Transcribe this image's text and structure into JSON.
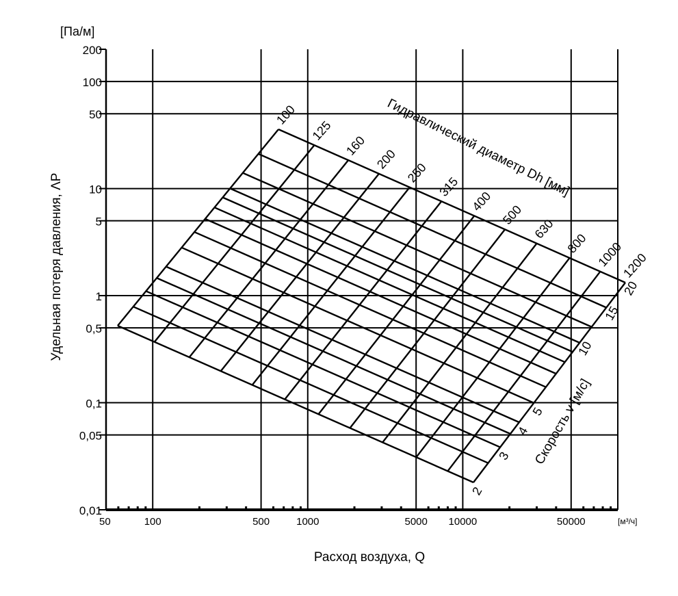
{
  "chart_data": {
    "type": "nomogram",
    "y_unit": "[Па/м]",
    "ylabel": "Удельная потеря давления, ΛP",
    "yscale": "log",
    "ylim": [
      0.01,
      200
    ],
    "yticks": [
      200,
      100,
      50,
      10,
      5,
      1,
      0.5,
      0.1,
      0.05,
      0.01
    ],
    "ytick_labels": [
      "200",
      "100",
      "50",
      "10",
      "5",
      "1",
      "0,5",
      "0,1",
      "0,05",
      "0,01"
    ],
    "xlabel": "Расход воздуха, Q",
    "x_unit": "[м³/ч]",
    "xscale": "log",
    "xlim": [
      50,
      100000
    ],
    "xticks": [
      50,
      100,
      500,
      1000,
      5000,
      10000,
      50000
    ],
    "xtick_labels": [
      "50",
      "100",
      "500",
      "1000",
      "5000",
      "10000",
      "50000"
    ],
    "grid": true,
    "diameter_title": "Гидравлический диаметр Dh [мм]",
    "diameters_mm": [
      100,
      125,
      160,
      200,
      250,
      315,
      400,
      500,
      630,
      800,
      1000,
      1200
    ],
    "velocity_title": "Скорость v [м/с]",
    "velocities_labeled": [
      2,
      3,
      4,
      5,
      10,
      15,
      20
    ]
  }
}
